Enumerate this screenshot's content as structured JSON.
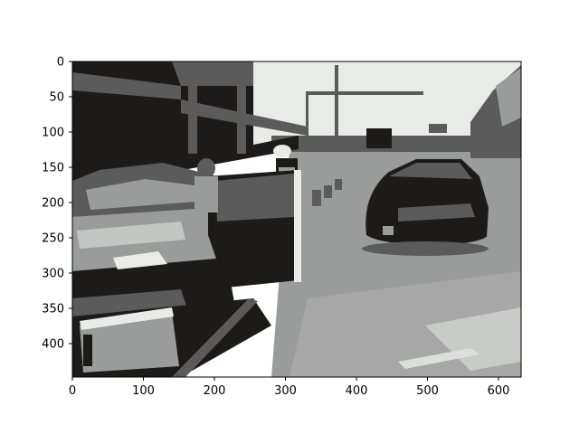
{
  "figure": {
    "background": "#ffffff",
    "axes_color": "#000000",
    "x_axis": {
      "range": [
        0,
        632
      ],
      "ticks": [
        "0",
        "100",
        "200",
        "300",
        "400",
        "500",
        "600"
      ]
    },
    "y_axis": {
      "range": [
        0,
        447
      ],
      "inverted": true,
      "ticks": [
        "0",
        "50",
        "100",
        "150",
        "200",
        "250",
        "300",
        "350",
        "400"
      ]
    },
    "image": {
      "subject": "grayscale-posterized-street-scene",
      "palette": [
        "#e8ebe8",
        "#9a9c9b",
        "#5b5b5b",
        "#1d1a1a"
      ]
    }
  }
}
